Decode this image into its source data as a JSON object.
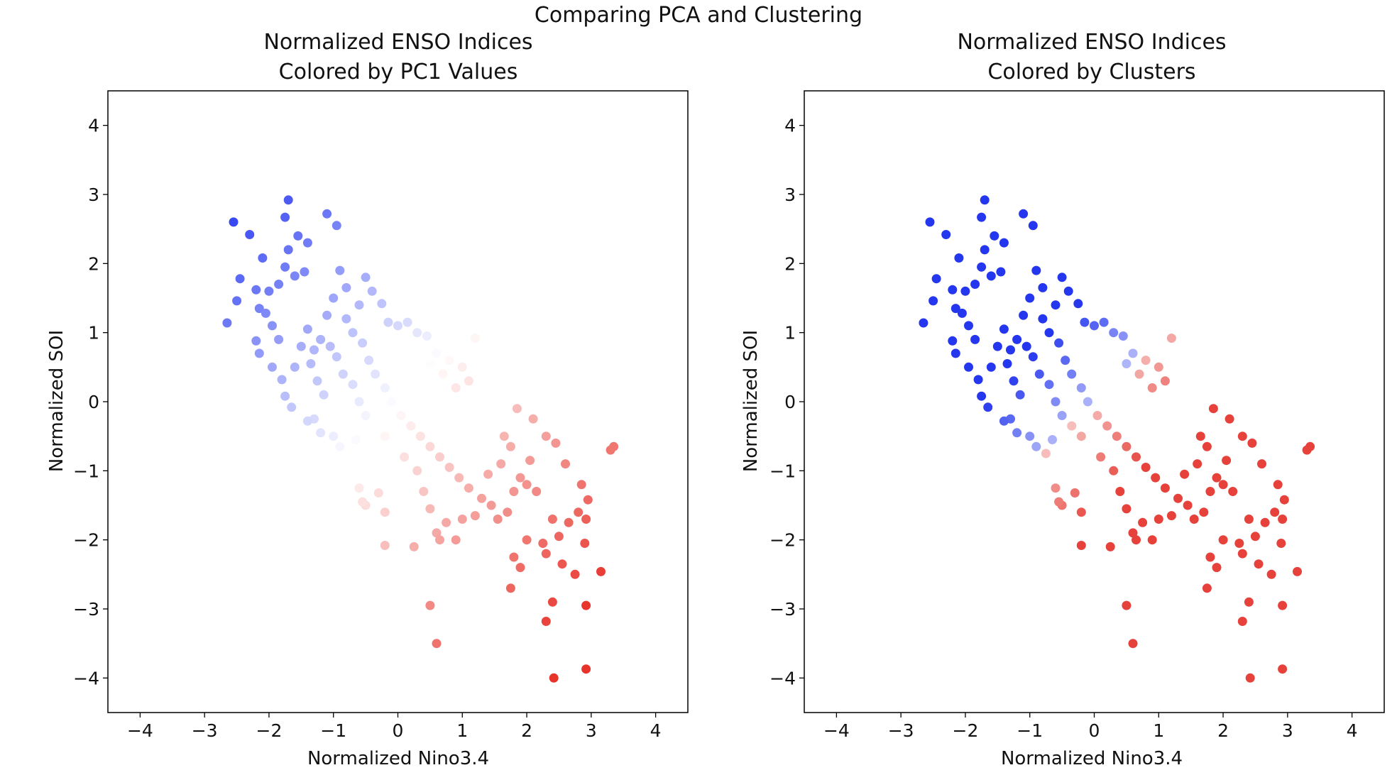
{
  "suptitle": "Comparing PCA and Clustering",
  "chart_data": [
    {
      "type": "scatter",
      "title_line1": "Normalized ENSO Indices",
      "title_line2": "Colored by PC1 Values",
      "xlabel": "Normalized Nino3.4",
      "ylabel": "Normalized SOI",
      "xlim": [
        -4.5,
        4.5
      ],
      "ylim": [
        -4.5,
        4.5
      ],
      "xticks": [
        -4,
        -3,
        -2,
        -1,
        0,
        1,
        2,
        3,
        4
      ],
      "yticks": [
        -4,
        -3,
        -2,
        -1,
        0,
        1,
        2,
        3,
        4
      ],
      "xtick_labels": [
        "−4",
        "−3",
        "−2",
        "−1",
        "0",
        "1",
        "2",
        "3",
        "4"
      ],
      "ytick_labels": [
        "−4",
        "−3",
        "−2",
        "−1",
        "0",
        "1",
        "2",
        "3",
        "4"
      ],
      "coloring": "PC1 value (bwr colormap, blue negative, red positive)",
      "colors": {
        "negative": "#1a2cf0",
        "neutral": "#ffffff",
        "positive": "#e8332b"
      }
    },
    {
      "type": "scatter",
      "title_line1": "Normalized ENSO Indices",
      "title_line2": "Colored by Clusters",
      "xlabel": "Normalized Nino3.4",
      "ylabel": "Normalized SOI",
      "xlim": [
        -4.5,
        4.5
      ],
      "ylim": [
        -4.5,
        4.5
      ],
      "xticks": [
        -4,
        -3,
        -2,
        -1,
        0,
        1,
        2,
        3,
        4
      ],
      "yticks": [
        -4,
        -3,
        -2,
        -1,
        0,
        1,
        2,
        3,
        4
      ],
      "xtick_labels": [
        "−4",
        "−3",
        "−2",
        "−1",
        "0",
        "1",
        "2",
        "3",
        "4"
      ],
      "ytick_labels": [
        "−4",
        "−3",
        "−2",
        "−1",
        "0",
        "1",
        "2",
        "3",
        "4"
      ],
      "coloring": "Cluster membership (two clusters: blue La Nina-like, red El Nino-like)",
      "colors": {
        "cluster_blue": "#2436ee",
        "cluster_red": "#e6413a"
      }
    }
  ],
  "scatter_points": [
    [
      -2.55,
      2.6
    ],
    [
      -2.3,
      2.42
    ],
    [
      -2.1,
      2.08
    ],
    [
      -1.7,
      2.92
    ],
    [
      -1.75,
      2.67
    ],
    [
      -1.7,
      2.2
    ],
    [
      -1.55,
      2.4
    ],
    [
      -1.4,
      2.3
    ],
    [
      -1.1,
      2.72
    ],
    [
      -0.95,
      2.55
    ],
    [
      -2.45,
      1.78
    ],
    [
      -2.2,
      1.62
    ],
    [
      -2.0,
      1.6
    ],
    [
      -1.85,
      1.7
    ],
    [
      -1.75,
      1.95
    ],
    [
      -1.6,
      1.82
    ],
    [
      -1.45,
      1.88
    ],
    [
      -2.65,
      1.14
    ],
    [
      -2.5,
      1.46
    ],
    [
      -2.15,
      1.35
    ],
    [
      -2.05,
      1.28
    ],
    [
      -1.95,
      1.1
    ],
    [
      -2.2,
      0.88
    ],
    [
      -2.15,
      0.7
    ],
    [
      -1.85,
      0.9
    ],
    [
      -1.95,
      0.5
    ],
    [
      -1.8,
      0.32
    ],
    [
      -1.75,
      0.08
    ],
    [
      -1.65,
      -0.08
    ],
    [
      -1.6,
      0.5
    ],
    [
      -1.5,
      0.8
    ],
    [
      -1.4,
      1.05
    ],
    [
      -1.3,
      0.75
    ],
    [
      -1.2,
      0.9
    ],
    [
      -1.1,
      1.25
    ],
    [
      -1.0,
      1.5
    ],
    [
      -0.9,
      1.9
    ],
    [
      -0.8,
      1.65
    ],
    [
      -0.6,
      1.4
    ],
    [
      -0.5,
      1.8
    ],
    [
      -0.4,
      1.6
    ],
    [
      -0.25,
      1.42
    ],
    [
      -0.15,
      1.15
    ],
    [
      0.0,
      1.1
    ],
    [
      0.15,
      1.15
    ],
    [
      0.3,
      1.0
    ],
    [
      0.45,
      0.95
    ],
    [
      0.6,
      0.7
    ],
    [
      0.8,
      0.6
    ],
    [
      1.0,
      0.5
    ],
    [
      1.2,
      0.92
    ],
    [
      1.1,
      0.3
    ],
    [
      0.9,
      0.2
    ],
    [
      0.7,
      0.4
    ],
    [
      0.5,
      0.55
    ],
    [
      -1.35,
      0.55
    ],
    [
      -1.25,
      0.3
    ],
    [
      -1.15,
      0.1
    ],
    [
      -1.3,
      -0.25
    ],
    [
      -1.4,
      -0.28
    ],
    [
      -1.2,
      -0.45
    ],
    [
      -1.0,
      -0.5
    ],
    [
      -0.9,
      -0.65
    ],
    [
      -0.75,
      -0.75
    ],
    [
      -0.65,
      -0.55
    ],
    [
      -1.05,
      0.8
    ],
    [
      -0.95,
      0.65
    ],
    [
      -0.85,
      0.4
    ],
    [
      -0.7,
      0.25
    ],
    [
      -0.6,
      0.0
    ],
    [
      -0.5,
      -0.2
    ],
    [
      -0.35,
      -0.35
    ],
    [
      -0.2,
      -0.5
    ],
    [
      -0.8,
      1.2
    ],
    [
      -0.7,
      1.0
    ],
    [
      -0.55,
      0.85
    ],
    [
      -0.45,
      0.6
    ],
    [
      -0.35,
      0.4
    ],
    [
      -0.2,
      0.2
    ],
    [
      -0.1,
      0.0
    ],
    [
      0.05,
      -0.2
    ],
    [
      0.2,
      -0.35
    ],
    [
      0.35,
      -0.5
    ],
    [
      0.5,
      -0.65
    ],
    [
      0.65,
      -0.8
    ],
    [
      0.8,
      -0.95
    ],
    [
      0.95,
      -1.1
    ],
    [
      1.1,
      -1.25
    ],
    [
      -0.6,
      -1.25
    ],
    [
      -0.5,
      -1.5
    ],
    [
      -0.3,
      -1.32
    ],
    [
      -0.2,
      -1.6
    ],
    [
      -0.2,
      -2.08
    ],
    [
      0.1,
      -0.8
    ],
    [
      0.3,
      -1.0
    ],
    [
      0.4,
      -1.3
    ],
    [
      0.5,
      -1.55
    ],
    [
      0.6,
      -1.9
    ],
    [
      0.75,
      -1.75
    ],
    [
      0.9,
      -2.0
    ],
    [
      1.0,
      -1.7
    ],
    [
      1.2,
      -1.65
    ],
    [
      1.3,
      -1.4
    ],
    [
      1.45,
      -1.5
    ],
    [
      1.55,
      -1.7
    ],
    [
      1.7,
      -1.6
    ],
    [
      1.8,
      -1.3
    ],
    [
      1.9,
      -1.1
    ],
    [
      2.0,
      -1.2
    ],
    [
      2.05,
      -0.85
    ],
    [
      2.15,
      -1.3
    ],
    [
      1.75,
      -0.65
    ],
    [
      1.6,
      -0.9
    ],
    [
      1.4,
      -1.05
    ],
    [
      1.65,
      -0.5
    ],
    [
      1.85,
      -0.1
    ],
    [
      2.1,
      -0.25
    ],
    [
      2.3,
      -0.5
    ],
    [
      2.45,
      -0.6
    ],
    [
      2.6,
      -0.9
    ],
    [
      2.85,
      -1.2
    ],
    [
      2.95,
      -1.42
    ],
    [
      2.8,
      -1.6
    ],
    [
      2.65,
      -1.75
    ],
    [
      2.4,
      -1.7
    ],
    [
      2.5,
      -1.95
    ],
    [
      2.25,
      -2.05
    ],
    [
      2.0,
      -2.0
    ],
    [
      1.9,
      -2.4
    ],
    [
      1.8,
      -2.25
    ],
    [
      1.75,
      -2.7
    ],
    [
      2.3,
      -2.2
    ],
    [
      2.55,
      -2.35
    ],
    [
      2.75,
      -2.5
    ],
    [
      2.9,
      -2.05
    ],
    [
      2.92,
      -1.7
    ],
    [
      3.15,
      -2.46
    ],
    [
      3.3,
      -0.7
    ],
    [
      3.35,
      -0.65
    ],
    [
      0.5,
      -2.95
    ],
    [
      0.6,
      -3.5
    ],
    [
      2.3,
      -3.18
    ],
    [
      2.4,
      -2.9
    ],
    [
      2.92,
      -2.95
    ],
    [
      2.42,
      -4.0
    ],
    [
      2.92,
      -3.87
    ],
    [
      0.25,
      -2.1
    ],
    [
      0.65,
      -2.0
    ],
    [
      -0.55,
      -1.45
    ]
  ]
}
